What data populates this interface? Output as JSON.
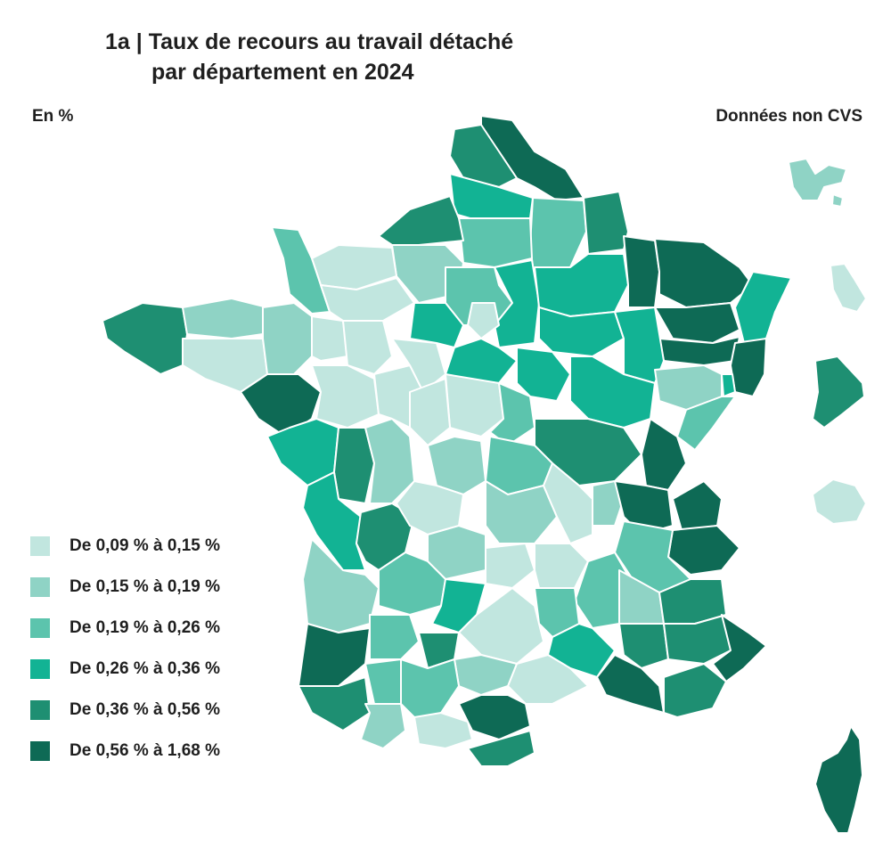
{
  "header": {
    "title_line1": "1a | Taux de recours au travail détaché",
    "title_line2": "par département en 2024",
    "unit": "En %",
    "note": "Données non CVS"
  },
  "legend": [
    {
      "label": "De 0,09 % à 0,15 %",
      "color": "#c1e6df"
    },
    {
      "label": "De 0,15 % à 0,19 %",
      "color": "#8fd3c5"
    },
    {
      "label": "De 0,19 % à 0,26 %",
      "color": "#5cc4ad"
    },
    {
      "label": "De 0,26 % à 0,36 %",
      "color": "#12b394"
    },
    {
      "label": "De 0,36 % à 0,56 %",
      "color": "#1e8f72"
    },
    {
      "label": "De 0,56 % à 1,68 %",
      "color": "#0e6a55"
    }
  ]
}
